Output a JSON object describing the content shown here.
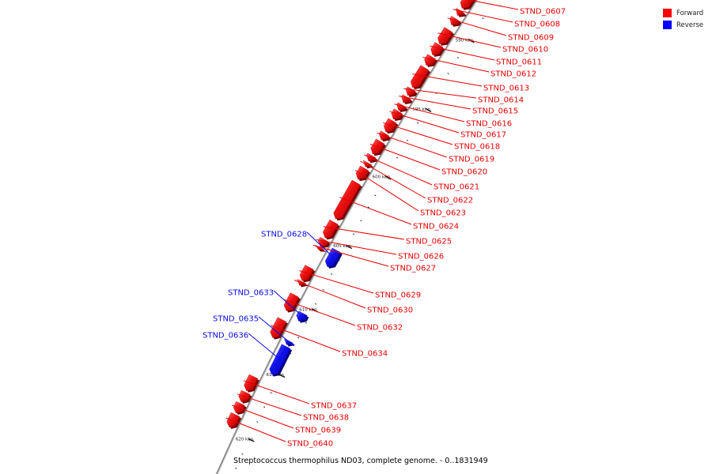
{
  "caption": "Streptococcus thermophilus ND03, complete genome. - 0..1831949",
  "legend": [
    {
      "label": "Forward",
      "color": "#ff0000"
    },
    {
      "label": "Reverse",
      "color": "#0000ff"
    }
  ],
  "colors": {
    "forward": "#e60000",
    "reverse": "#0a0ae6",
    "backbone": "#888888"
  },
  "ticks": [
    "590 kbp",
    "595 kbp",
    "600 kbp",
    "605 kbp",
    "610 kbp",
    "615 kbp",
    "620 kbp"
  ],
  "genes": [
    {
      "name": "STND_0607",
      "strand": "forward"
    },
    {
      "name": "STND_0608",
      "strand": "forward"
    },
    {
      "name": "STND_0609",
      "strand": "forward"
    },
    {
      "name": "STND_0610",
      "strand": "forward"
    },
    {
      "name": "STND_0611",
      "strand": "forward"
    },
    {
      "name": "STND_0612",
      "strand": "forward"
    },
    {
      "name": "STND_0613",
      "strand": "forward"
    },
    {
      "name": "STND_0614",
      "strand": "forward"
    },
    {
      "name": "STND_0615",
      "strand": "forward"
    },
    {
      "name": "STND_0616",
      "strand": "forward"
    },
    {
      "name": "STND_0617",
      "strand": "forward"
    },
    {
      "name": "STND_0618",
      "strand": "forward"
    },
    {
      "name": "STND_0619",
      "strand": "forward"
    },
    {
      "name": "STND_0620",
      "strand": "forward"
    },
    {
      "name": "STND_0621",
      "strand": "forward"
    },
    {
      "name": "STND_0622",
      "strand": "forward"
    },
    {
      "name": "STND_0623",
      "strand": "forward"
    },
    {
      "name": "STND_0624",
      "strand": "forward"
    },
    {
      "name": "STND_0625",
      "strand": "forward"
    },
    {
      "name": "STND_0626",
      "strand": "forward"
    },
    {
      "name": "STND_0627",
      "strand": "forward"
    },
    {
      "name": "STND_0628",
      "strand": "reverse"
    },
    {
      "name": "STND_0629",
      "strand": "forward"
    },
    {
      "name": "STND_0630",
      "strand": "forward"
    },
    {
      "name": "STND_0632",
      "strand": "forward"
    },
    {
      "name": "STND_0633",
      "strand": "reverse"
    },
    {
      "name": "STND_0634",
      "strand": "forward"
    },
    {
      "name": "STND_0635",
      "strand": "reverse"
    },
    {
      "name": "STND_0636",
      "strand": "reverse"
    },
    {
      "name": "STND_0637",
      "strand": "forward"
    },
    {
      "name": "STND_0638",
      "strand": "forward"
    },
    {
      "name": "STND_0639",
      "strand": "forward"
    },
    {
      "name": "STND_0640",
      "strand": "forward"
    }
  ]
}
